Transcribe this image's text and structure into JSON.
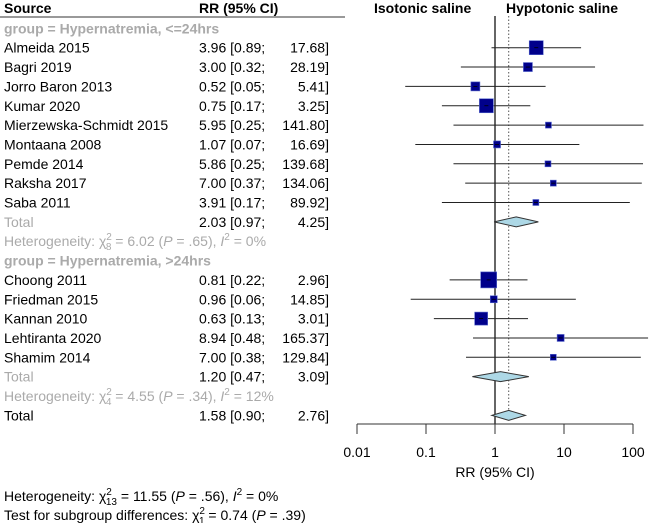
{
  "chart_data": {
    "type": "forest",
    "header": {
      "source": "Source",
      "rr": "RR (95% CI)"
    },
    "favours": {
      "left": "Isotonic saline",
      "right": "Hypotonic saline"
    },
    "xlabel": "RR (95% CI)",
    "xscale": "log",
    "xlim": [
      0.01,
      100
    ],
    "xticks": [
      "0.01",
      "0.1",
      "1",
      "10",
      "100"
    ],
    "null_value": 1,
    "overall_value": 1.58,
    "colors": {
      "square": "#00008b",
      "diamond": "#add8e6",
      "grey": "#aaaaaa"
    },
    "groups": [
      {
        "label": "group = Hypernatremia, <=24hrs",
        "studies": [
          {
            "name": "Almeida 2015",
            "est": "3.96",
            "lo": "0.89",
            "hi": "17.68",
            "weight": 14
          },
          {
            "name": "Bagri 2019",
            "est": "3.00",
            "lo": "0.32",
            "hi": "28.19",
            "weight": 9
          },
          {
            "name": "Jorro Baron 2013",
            "est": "0.52",
            "lo": "0.05",
            "hi": "5.41",
            "weight": 9
          },
          {
            "name": "Kumar 2020",
            "est": "0.75",
            "lo": "0.17",
            "hi": "3.25",
            "weight": 14
          },
          {
            "name": "Mierzewska-Schmidt 2015",
            "est": "5.95",
            "lo": "0.25",
            "hi": "141.80",
            "weight": 6
          },
          {
            "name": "Montaana 2008",
            "est": "1.07",
            "lo": "0.07",
            "hi": "16.69",
            "weight": 7
          },
          {
            "name": "Pemde 2014",
            "est": "5.86",
            "lo": "0.25",
            "hi": "139.68",
            "weight": 6
          },
          {
            "name": "Raksha 2017",
            "est": "7.00",
            "lo": "0.37",
            "hi": "134.06",
            "weight": 6
          },
          {
            "name": "Saba 2011",
            "est": "3.91",
            "lo": "0.17",
            "hi": "89.92",
            "weight": 6
          }
        ],
        "total": {
          "label": "Total",
          "est": "2.03",
          "lo": "0.97",
          "hi": "4.25"
        },
        "heterogeneity": {
          "label": "Heterogeneity: ",
          "df": "8",
          "chi2": "6.02",
          "p": ".65",
          "i2": "0%"
        }
      },
      {
        "label": "group = Hypernatremia, >24hrs",
        "studies": [
          {
            "name": "Choong 2011",
            "est": "0.81",
            "lo": "0.22",
            "hi": "2.96",
            "weight": 16
          },
          {
            "name": "Friedman 2015",
            "est": "0.96",
            "lo": "0.06",
            "hi": "14.85",
            "weight": 7
          },
          {
            "name": "Kannan 2010",
            "est": "0.63",
            "lo": "0.13",
            "hi": "3.01",
            "weight": 13
          },
          {
            "name": "Lehtiranta 2020",
            "est": "8.94",
            "lo": "0.48",
            "hi": "165.37",
            "weight": 7
          },
          {
            "name": "Shamim 2014",
            "est": "7.00",
            "lo": "0.38",
            "hi": "129.84",
            "weight": 6
          }
        ],
        "total": {
          "label": "Total",
          "est": "1.20",
          "lo": "0.47",
          "hi": "3.09"
        },
        "heterogeneity": {
          "label": "Heterogeneity: ",
          "df": "4",
          "chi2": "4.55",
          "p": ".34",
          "i2": "12%"
        }
      }
    ],
    "overall": {
      "label": "Total",
      "est": "1.58",
      "lo": "0.90",
      "hi": "2.76"
    },
    "overall_heterogeneity": {
      "label": "Heterogeneity: ",
      "df": "13",
      "chi2": "11.55",
      "p": ".56",
      "i2": "0%"
    },
    "subgroup_test": {
      "label": "Test for subgroup differences: ",
      "df": "1",
      "chi2": "0.74",
      "p": ".39"
    }
  }
}
